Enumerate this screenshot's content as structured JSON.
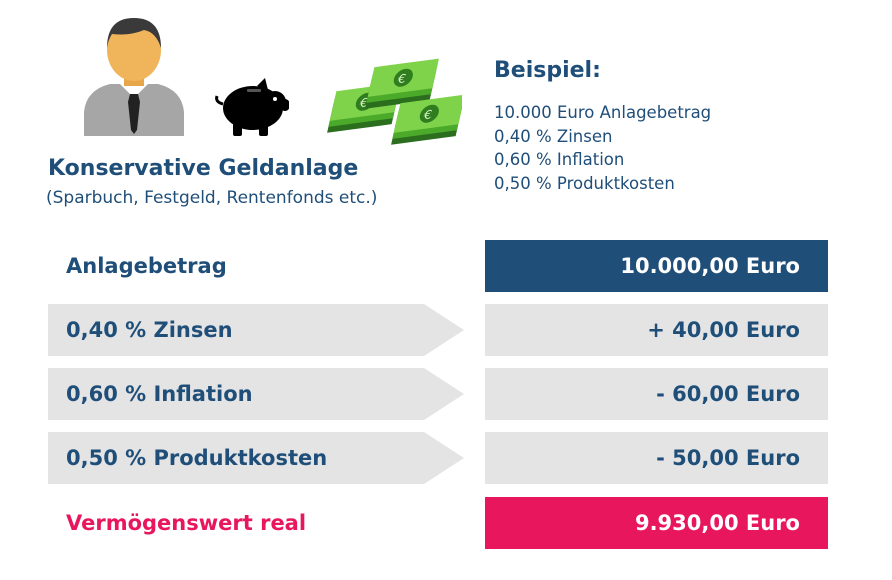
{
  "header": {
    "title": "Konservative Geldanlage",
    "subtitle": "(Sparbuch, Festgeld, Rentenfonds etc.)"
  },
  "icons": [
    "person-icon",
    "piggy-bank-icon",
    "money-stack-icon"
  ],
  "example": {
    "title": "Beispiel:",
    "lines": [
      "10.000 Euro Anlagebetrag",
      "0,40 % Zinsen",
      "0,60 % Inflation",
      "0,50 % Produktkosten"
    ]
  },
  "rows": [
    {
      "label": "Anlagebetrag",
      "value": "10.000,00 Euro"
    },
    {
      "label": "0,40 % Zinsen",
      "value": "+ 40,00 Euro"
    },
    {
      "label": "0,60 % Inflation",
      "value": "- 60,00 Euro"
    },
    {
      "label": "0,50 % Produktkosten",
      "value": "- 50,00 Euro"
    },
    {
      "label": "Vermögenswert real",
      "value": "9.930,00 Euro"
    }
  ],
  "colors": {
    "navy": "#1f4e79",
    "gray": "#e4e4e4",
    "accent_red": "#e8175d"
  }
}
